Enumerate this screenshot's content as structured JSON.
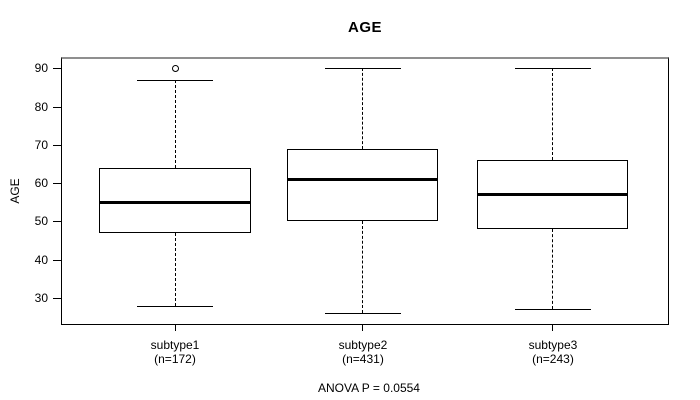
{
  "title": "AGE",
  "y_axis": {
    "label": "AGE",
    "ticks": [
      30,
      40,
      50,
      60,
      70,
      80,
      90
    ]
  },
  "x_axis": {
    "groups": [
      {
        "label": "subtype1",
        "sublabel": "(n=172)"
      },
      {
        "label": "subtype2",
        "sublabel": "(n=431)"
      },
      {
        "label": "subtype3",
        "sublabel": "(n=243)"
      }
    ]
  },
  "footer": {
    "anova": "ANOVA P = 0.0554"
  },
  "colors": {
    "line": "#000000",
    "background": "#ffffff",
    "border_top": "#8f8f8f"
  },
  "chart_data": {
    "type": "boxplot",
    "title": "AGE",
    "xlabel": "",
    "ylabel": "AGE",
    "ylim": [
      22.95,
      92.95
    ],
    "yticks": [
      30,
      40,
      50,
      60,
      70,
      80,
      90
    ],
    "grid": false,
    "categories": [
      "subtype1",
      "subtype2",
      "subtype3"
    ],
    "annotation": "ANOVA P = 0.0554",
    "series": [
      {
        "name": "subtype1",
        "n": 172,
        "whisker_low": 28,
        "q1": 47,
        "median": 55,
        "q3": 64,
        "whisker_high": 87,
        "outliers": [
          90
        ]
      },
      {
        "name": "subtype2",
        "n": 431,
        "whisker_low": 26,
        "q1": 50,
        "median": 61,
        "q3": 69,
        "whisker_high": 90,
        "outliers": []
      },
      {
        "name": "subtype3",
        "n": 243,
        "whisker_low": 27,
        "q1": 48,
        "median": 57,
        "q3": 66,
        "whisker_high": 90,
        "outliers": []
      }
    ],
    "centers_frac": [
      0.1875,
      0.4967,
      0.8092
    ],
    "box_width_frac": 0.2484,
    "cap_width_frac": 0.125
  }
}
